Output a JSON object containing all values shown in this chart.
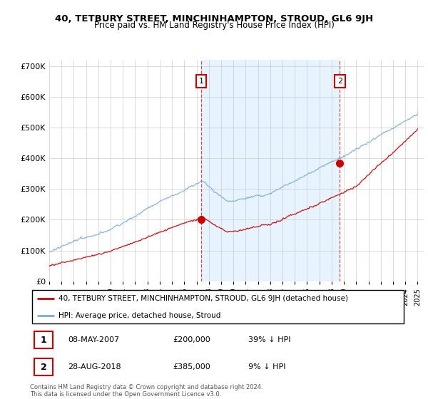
{
  "title": "40, TETBURY STREET, MINCHINHAMPTON, STROUD, GL6 9JH",
  "subtitle": "Price paid vs. HM Land Registry's House Price Index (HPI)",
  "legend_label_red": "40, TETBURY STREET, MINCHINHAMPTON, STROUD, GL6 9JH (detached house)",
  "legend_label_blue": "HPI: Average price, detached house, Stroud",
  "footer": "Contains HM Land Registry data © Crown copyright and database right 2024.\nThis data is licensed under the Open Government Licence v3.0.",
  "sale1_date": "08-MAY-2007",
  "sale1_price": "£200,000",
  "sale1_hpi": "39% ↓ HPI",
  "sale2_date": "28-AUG-2018",
  "sale2_price": "£385,000",
  "sale2_hpi": "9% ↓ HPI",
  "ylim": [
    0,
    720000
  ],
  "yticks": [
    0,
    100000,
    200000,
    300000,
    400000,
    500000,
    600000,
    700000
  ],
  "ytick_labels": [
    "£0",
    "£100K",
    "£200K",
    "£300K",
    "£400K",
    "£500K",
    "£600K",
    "£700K"
  ],
  "red_color": "#cc0000",
  "blue_color": "#7aadd4",
  "shade_color": "#ddeeff",
  "sale_dot_color": "#cc0000",
  "grid_color": "#cccccc",
  "background_color": "#ffffff",
  "sale1_year": 2007.37,
  "sale1_price_val": 200000,
  "sale2_year": 2018.66,
  "sale2_price_val": 385000
}
